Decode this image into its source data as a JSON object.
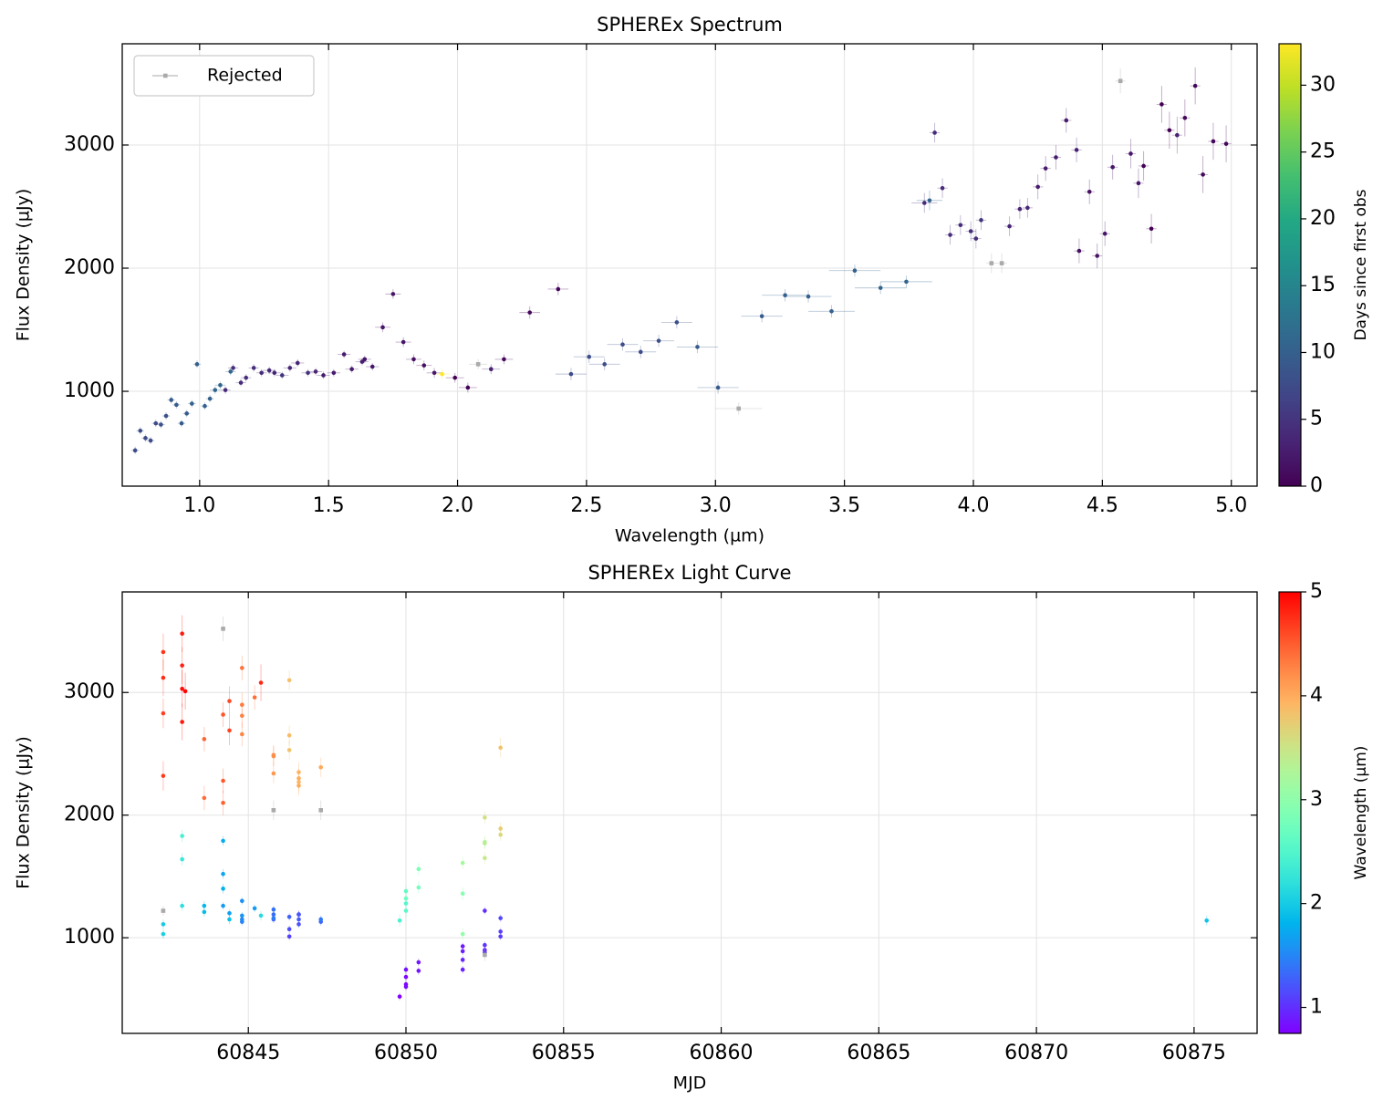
{
  "chart_data": [
    {
      "type": "scatter",
      "title": "SPHEREx Spectrum",
      "xlabel": "Wavelength (µm)",
      "ylabel": "Flux Density (µJy)",
      "xlim": [
        0.7,
        5.1
      ],
      "ylim": [
        230,
        3822
      ],
      "xticks": [
        {
          "value": 1,
          "label": "1.0"
        },
        1.5,
        {
          "value": 2,
          "label": "2.0"
        },
        2.5,
        {
          "value": 3,
          "label": "3.0"
        },
        3.5,
        {
          "value": 4,
          "label": "4.0"
        },
        4.5,
        {
          "value": 5,
          "label": "5.0"
        }
      ],
      "yticks": [
        1000,
        2000,
        3000
      ],
      "grid": true,
      "legend": "upper left",
      "colorbar": {
        "label": "Days since first obs",
        "cmap": "viridis",
        "clim": [
          0,
          33.1
        ],
        "ticks": [
          0,
          5,
          10,
          15,
          20,
          25,
          30
        ]
      },
      "series": [
        {
          "x": [
            0.75,
            0.77,
            0.79,
            0.81,
            0.83,
            0.85,
            0.87,
            0.89,
            0.91,
            0.93,
            0.95,
            0.97,
            0.99,
            1.02,
            1.04,
            1.06,
            1.08,
            1.1,
            1.12,
            1.13,
            1.16,
            1.18,
            1.21,
            1.24,
            1.27,
            1.29,
            1.32,
            1.35,
            1.38,
            1.42,
            1.45,
            1.48,
            1.52,
            1.56,
            1.59,
            1.63,
            1.64,
            1.67,
            1.71,
            1.75,
            1.79,
            1.83,
            1.87,
            1.91,
            1.94,
            1.99,
            2.04,
            2.13,
            2.18,
            2.28,
            2.39,
            2.44,
            2.51,
            2.57,
            2.64,
            2.71,
            2.78,
            2.85,
            2.93,
            3.01,
            3.18,
            3.27,
            3.36,
            3.45,
            3.54,
            3.64,
            3.74,
            3.81,
            3.83,
            3.85,
            3.88,
            3.91,
            3.95,
            3.99,
            4.01,
            4.03,
            4.14,
            4.18,
            4.21,
            4.25,
            4.28,
            4.32,
            4.36,
            4.4,
            4.41,
            4.45,
            4.48,
            4.51,
            4.54,
            4.61,
            4.64,
            4.66,
            4.69,
            4.73,
            4.76,
            4.79,
            4.82,
            4.86,
            4.89,
            4.93,
            4.98
          ],
          "values": [
            520,
            680,
            620,
            600,
            740,
            730,
            800,
            930,
            890,
            740,
            820,
            900,
            1220,
            880,
            940,
            1010,
            1050,
            1010,
            1160,
            1190,
            1070,
            1110,
            1190,
            1150,
            1170,
            1150,
            1130,
            1190,
            1230,
            1150,
            1160,
            1130,
            1150,
            1300,
            1180,
            1240,
            1260,
            1200,
            1520,
            1790,
            1400,
            1260,
            1210,
            1150,
            1140,
            1110,
            1030,
            1180,
            1260,
            1640,
            1830,
            1140,
            1280,
            1220,
            1380,
            1320,
            1410,
            1560,
            1360,
            1030,
            1610,
            1780,
            1770,
            1650,
            1980,
            1840,
            1890,
            2530,
            2550,
            3100,
            2650,
            2270,
            2350,
            2300,
            2240,
            2390,
            2340,
            2480,
            2490,
            2660,
            2810,
            2900,
            3200,
            2960,
            2140,
            2620,
            2100,
            2280,
            2820,
            2930,
            2690,
            2830,
            2320,
            3330,
            3120,
            3080,
            3220,
            3480,
            2760,
            3030,
            3010
          ],
          "x_err": [
            0.015,
            0.015,
            0.015,
            0.015,
            0.015,
            0.015,
            0.015,
            0.015,
            0.015,
            0.015,
            0.015,
            0.015,
            0.015,
            0.015,
            0.015,
            0.02,
            0.02,
            0.02,
            0.02,
            0.02,
            0.02,
            0.02,
            0.02,
            0.02,
            0.025,
            0.025,
            0.025,
            0.025,
            0.025,
            0.025,
            0.025,
            0.025,
            0.025,
            0.025,
            0.025,
            0.025,
            0.025,
            0.025,
            0.03,
            0.03,
            0.03,
            0.03,
            0.03,
            0.03,
            0.03,
            0.035,
            0.035,
            0.035,
            0.035,
            0.04,
            0.04,
            0.06,
            0.06,
            0.06,
            0.06,
            0.06,
            0.06,
            0.06,
            0.08,
            0.08,
            0.08,
            0.09,
            0.09,
            0.09,
            0.1,
            0.1,
            0.1,
            0.05,
            0.05,
            0.02,
            0.02,
            0.02,
            0.02,
            0.02,
            0.02,
            0.02,
            0.02,
            0.02,
            0.02,
            0.02,
            0.02,
            0.02,
            0.02,
            0.02,
            0.02,
            0.02,
            0.02,
            0.02,
            0.02,
            0.02,
            0.02,
            0.02,
            0.02,
            0.02,
            0.02,
            0.02,
            0.02,
            0.02,
            0.02,
            0.02,
            0.02
          ],
          "y_err": [
            30,
            30,
            30,
            30,
            30,
            30,
            30,
            30,
            30,
            30,
            30,
            30,
            30,
            30,
            30,
            30,
            30,
            30,
            30,
            30,
            30,
            30,
            30,
            30,
            30,
            30,
            30,
            30,
            30,
            30,
            30,
            30,
            30,
            30,
            30,
            30,
            30,
            30,
            40,
            40,
            40,
            40,
            40,
            40,
            40,
            40,
            40,
            40,
            40,
            50,
            50,
            50,
            50,
            50,
            50,
            50,
            50,
            50,
            50,
            50,
            50,
            50,
            50,
            50,
            50,
            50,
            50,
            80,
            80,
            80,
            80,
            80,
            80,
            80,
            80,
            80,
            80,
            80,
            80,
            100,
            100,
            100,
            100,
            100,
            100,
            100,
            100,
            100,
            100,
            120,
            120,
            120,
            120,
            150,
            150,
            150,
            150,
            150,
            150,
            150,
            150
          ],
          "c": [
            7.5,
            7.7,
            7.7,
            7.7,
            7.7,
            8.1,
            8.1,
            9.5,
            9.5,
            9.5,
            9.5,
            10.2,
            10.2,
            10.2,
            10.2,
            10.7,
            10.7,
            4.0,
            10.7,
            4.3,
            4.0,
            4.3,
            4.3,
            4.3,
            4.0,
            3.5,
            5.0,
            3.5,
            3.5,
            5.0,
            3.5,
            2.5,
            2.5,
            2.5,
            2.5,
            2.9,
            1.9,
            2.1,
            1.9,
            1.9,
            1.9,
            1.3,
            1.3,
            2.1,
            33.1,
            0,
            0,
            3.1,
            0.6,
            0.6,
            0.6,
            7.5,
            7.7,
            7.7,
            7.7,
            7.7,
            8.1,
            8.1,
            9.5,
            9.5,
            9.5,
            10.2,
            10.2,
            10.2,
            10.2,
            10.7,
            10.7,
            4.0,
            10.7,
            4.0,
            4.0,
            4.3,
            4.3,
            4.3,
            4.3,
            5.0,
            3.5,
            3.5,
            3.5,
            2.5,
            2.5,
            2.5,
            2.5,
            2.9,
            1.3,
            1.3,
            1.9,
            1.9,
            1.9,
            2.1,
            2.1,
            0,
            0,
            0,
            0,
            3.1,
            0.6,
            0.6,
            0.6,
            0.6,
            0.7
          ]
        },
        {
          "name": "Rejected",
          "color": "#aaaaaa",
          "x": [
            2.08,
            3.09,
            4.07,
            4.11,
            4.57
          ],
          "values": [
            1220,
            860,
            2040,
            2040,
            3520
          ],
          "x_err": [
            0.035,
            0.09,
            0.02,
            0.02,
            0.02
          ],
          "y_err": [
            40,
            50,
            80,
            80,
            100
          ]
        }
      ]
    },
    {
      "type": "scatter",
      "title": "SPHEREx Light Curve",
      "xlabel": "MJD",
      "ylabel": "Flux Density (µJy)",
      "xlim": [
        60841.0,
        60877.0
      ],
      "ylim": [
        220,
        3820
      ],
      "xticks": [
        60845,
        60850,
        60855,
        60860,
        60865,
        60870,
        60875
      ],
      "yticks": [
        1000,
        2000,
        3000
      ],
      "grid": true,
      "colorbar": {
        "label": "Wavelength (µm)",
        "cmap": "rainbow",
        "clim": [
          0.75,
          5.0
        ],
        "ticks": [
          1,
          2,
          3,
          4,
          5
        ]
      },
      "series": [
        {
          "x": [
            60849.8,
            60850.0,
            60850.0,
            60850.0,
            60850.0,
            60850.4,
            60850.4,
            60851.8,
            60851.8,
            60851.8,
            60851.8,
            60852.5,
            60852.5,
            60852.5,
            60852.5,
            60853.0,
            60853.0,
            60846.3,
            60853.0,
            60846.6,
            60846.3,
            60846.6,
            60846.6,
            60846.6,
            60846.3,
            60845.8,
            60847.3,
            60845.8,
            60845.8,
            60847.3,
            60845.8,
            60844.8,
            60844.8,
            60844.8,
            60844.8,
            60845.2,
            60844.2,
            60844.4,
            60844.2,
            60844.2,
            60844.2,
            60843.6,
            60843.6,
            60844.4,
            60875.4,
            60842.3,
            60842.3,
            60845.4,
            60842.9,
            60842.9,
            60842.9,
            60849.8,
            60850.0,
            60850.0,
            60850.0,
            60850.0,
            60850.4,
            60850.4,
            60851.8,
            60851.8,
            60851.8,
            60852.5,
            60852.5,
            60852.5,
            60852.5,
            60853.0,
            60853.0,
            60846.3,
            60853.0,
            60846.3,
            60846.3,
            60846.6,
            60846.6,
            60846.6,
            60846.6,
            60847.3,
            60845.8,
            60845.8,
            60845.8,
            60844.8,
            60844.8,
            60844.8,
            60844.8,
            60845.2,
            60843.6,
            60843.6,
            60844.2,
            60844.2,
            60844.2,
            60844.4,
            60844.4,
            60842.3,
            60842.3,
            60842.3,
            60842.3,
            60845.4,
            60842.9,
            60842.9,
            60842.9,
            60842.9,
            60843.0
          ],
          "values": [
            520,
            680,
            620,
            600,
            740,
            730,
            800,
            930,
            890,
            740,
            820,
            900,
            1220,
            880,
            940,
            1010,
            1050,
            1010,
            1160,
            1190,
            1070,
            1110,
            1190,
            1150,
            1170,
            1150,
            1130,
            1190,
            1230,
            1150,
            1160,
            1130,
            1150,
            1300,
            1180,
            1240,
            1260,
            1200,
            1520,
            1790,
            1400,
            1260,
            1210,
            1150,
            1140,
            1110,
            1030,
            1180,
            1260,
            1640,
            1830,
            1140,
            1280,
            1220,
            1380,
            1320,
            1410,
            1560,
            1360,
            1030,
            1610,
            1780,
            1770,
            1650,
            1980,
            1840,
            1890,
            2530,
            2550,
            3100,
            2650,
            2270,
            2350,
            2300,
            2240,
            2390,
            2340,
            2480,
            2490,
            2660,
            2810,
            2900,
            3200,
            2960,
            2140,
            2620,
            2100,
            2280,
            2820,
            2930,
            2690,
            2830,
            2320,
            3330,
            3120,
            3080,
            3220,
            3480,
            2760,
            3030,
            3010
          ],
          "y_err": [
            30,
            30,
            30,
            30,
            30,
            30,
            30,
            30,
            30,
            30,
            30,
            30,
            30,
            30,
            30,
            30,
            30,
            30,
            30,
            30,
            30,
            30,
            30,
            30,
            30,
            30,
            30,
            30,
            30,
            30,
            30,
            30,
            30,
            30,
            30,
            30,
            30,
            30,
            40,
            40,
            40,
            40,
            40,
            40,
            40,
            40,
            40,
            40,
            40,
            50,
            50,
            50,
            50,
            50,
            50,
            50,
            50,
            50,
            50,
            50,
            50,
            50,
            50,
            50,
            50,
            50,
            50,
            80,
            80,
            80,
            80,
            80,
            80,
            80,
            80,
            80,
            80,
            80,
            80,
            100,
            100,
            100,
            100,
            100,
            100,
            100,
            100,
            100,
            100,
            120,
            120,
            120,
            120,
            150,
            150,
            150,
            150,
            150,
            150,
            150,
            150
          ],
          "c": [
            0.75,
            0.77,
            0.79,
            0.81,
            0.83,
            0.85,
            0.87,
            0.89,
            0.91,
            0.93,
            0.95,
            0.97,
            0.99,
            1.02,
            1.04,
            1.06,
            1.08,
            1.1,
            1.12,
            1.13,
            1.16,
            1.18,
            1.21,
            1.24,
            1.27,
            1.29,
            1.32,
            1.35,
            1.38,
            1.42,
            1.45,
            1.48,
            1.52,
            1.56,
            1.59,
            1.63,
            1.64,
            1.67,
            1.71,
            1.75,
            1.79,
            1.83,
            1.87,
            1.91,
            1.94,
            1.99,
            2.04,
            2.13,
            2.18,
            2.28,
            2.39,
            2.44,
            2.51,
            2.57,
            2.64,
            2.71,
            2.78,
            2.85,
            2.93,
            3.01,
            3.18,
            3.27,
            3.36,
            3.45,
            3.54,
            3.64,
            3.74,
            3.81,
            3.83,
            3.85,
            3.88,
            3.91,
            3.95,
            3.99,
            4.01,
            4.03,
            4.14,
            4.18,
            4.21,
            4.25,
            4.28,
            4.32,
            4.36,
            4.4,
            4.41,
            4.45,
            4.48,
            4.51,
            4.54,
            4.61,
            4.64,
            4.66,
            4.69,
            4.73,
            4.76,
            4.79,
            4.82,
            4.86,
            4.89,
            4.93,
            4.98
          ]
        },
        {
          "color": "#aaaaaa",
          "x": [
            60842.3,
            60852.5,
            60845.8,
            60847.3,
            60844.2
          ],
          "values": [
            1220,
            860,
            2040,
            2040,
            3520
          ],
          "y_err": [
            40,
            50,
            80,
            80,
            100
          ]
        }
      ]
    }
  ]
}
